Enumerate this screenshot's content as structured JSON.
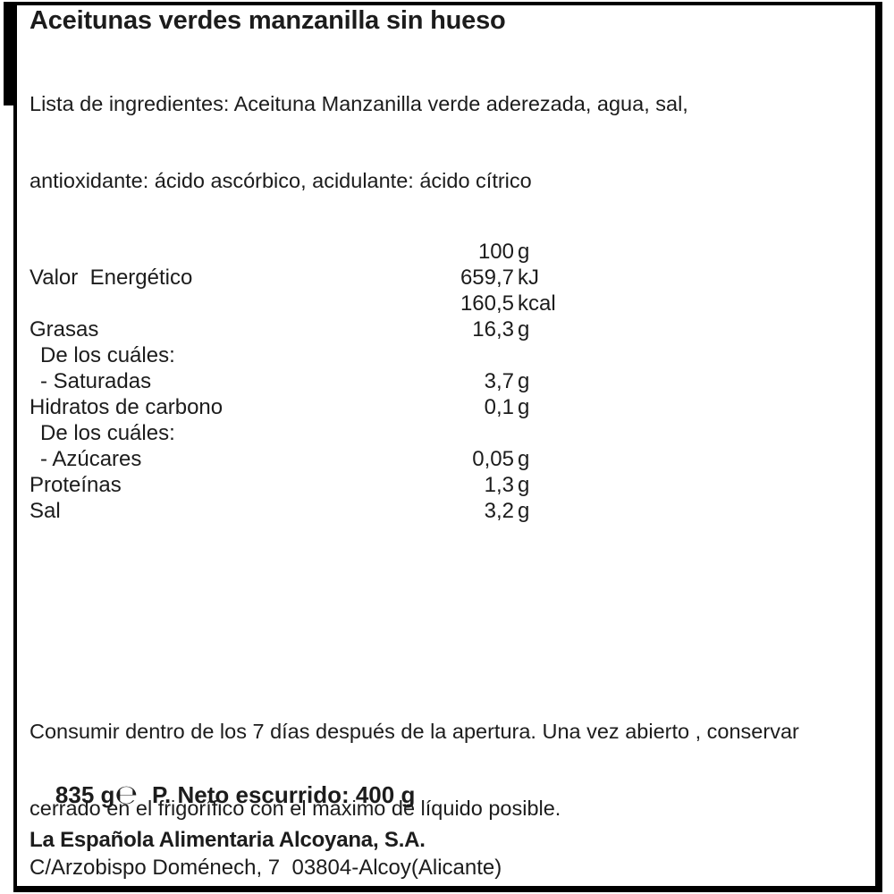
{
  "label": {
    "title": "Aceitunas verdes manzanilla sin hueso",
    "ingredients_lines": [
      "Lista de ingredientes: Aceituna Manzanilla verde aderezada, agua, sal,",
      "antioxidante: ácido ascórbico, acidulante: ácido cítrico"
    ],
    "nutrition": {
      "per_quantity_header": "100 g",
      "rows": [
        {
          "label": "",
          "num": "100",
          "unit": "g"
        },
        {
          "label": "Valor  Energético",
          "num": "659,7",
          "unit": "kJ"
        },
        {
          "label": "",
          "num": "160,5",
          "unit": "kcal"
        },
        {
          "label": "Grasas",
          "num": "16,3",
          "unit": "g"
        },
        {
          "label": "De los cuáles:",
          "num": "",
          "unit": ""
        },
        {
          "label": "- Saturadas",
          "num": "3,7",
          "unit": "g"
        },
        {
          "label": "Hidratos de carbono",
          "num": "0,1",
          "unit": "g"
        },
        {
          "label": "De los cuáles:",
          "num": "",
          "unit": ""
        },
        {
          "label": "- Azúcares",
          "num": "0,05",
          "unit": "g"
        },
        {
          "label": "Proteínas",
          "num": "1,3",
          "unit": "g"
        },
        {
          "label": "Sal",
          "num": "3,2",
          "unit": "g"
        }
      ]
    },
    "storage_lines": [
      "Consumir dentro de los 7 días después de la apertura. Una vez abierto , conservar",
      "cerrado en el frigorífico con el máximo de líquido posible."
    ],
    "weight": {
      "gross": "835 g",
      "estimated_sign": "℮",
      "net": "P. Neto escurrido: 400 g"
    },
    "manufacturer": {
      "name": "La Española Alimentaria Alcoyana, S.A.",
      "address": "C/Arzobispo Doménech, 7  03804-Alcoy(Alicante)"
    },
    "colors": {
      "background": "#ffffff",
      "border": "#000000",
      "text": "#1c1c1c"
    }
  }
}
